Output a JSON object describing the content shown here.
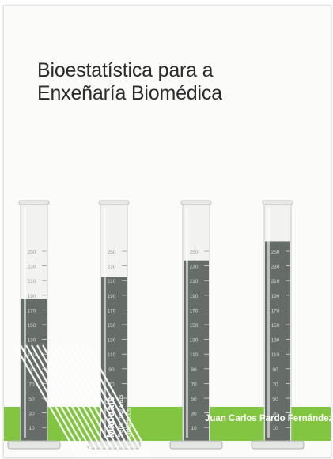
{
  "book": {
    "title_line1": "Bioestatística para a",
    "title_line2": "Enxeñaría Biomédica",
    "author": "Juan Carlos Pardo Fernández",
    "series_name": "Manuais",
    "series_subtitle": "Serie manuais didácticos"
  },
  "graduation_labels": [
    "250",
    "230",
    "210",
    "190",
    "170",
    "150",
    "130",
    "110",
    "90",
    "70",
    "50",
    "30",
    "10"
  ],
  "cylinders": [
    {
      "name": "cylinder-1",
      "fill_fraction": 0.6
    },
    {
      "name": "cylinder-2",
      "fill_fraction": 0.69
    },
    {
      "name": "cylinder-3",
      "fill_fraction": 0.76
    },
    {
      "name": "cylinder-4",
      "fill_fraction": 0.84
    }
  ],
  "colors": {
    "accent_green": "#82c540",
    "liquid": "#5a625c",
    "title_text": "#2b2b2b"
  }
}
